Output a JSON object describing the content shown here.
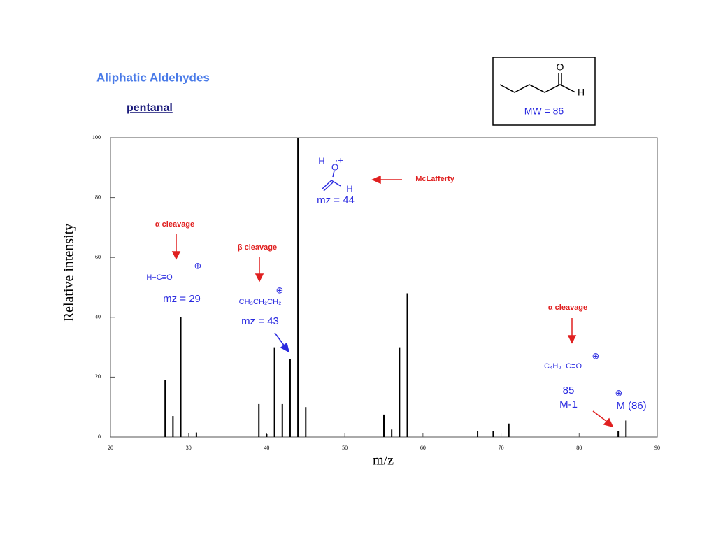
{
  "chart_data": {
    "type": "bar",
    "title": "Aliphatic Aldehydes",
    "subtitle": "pentanal",
    "xlabel": "m/z",
    "ylabel": "Relative intensity",
    "color": "#000000",
    "x": [
      27,
      28,
      29,
      31,
      39,
      40,
      41,
      42,
      43,
      44,
      45,
      55,
      56,
      57,
      58,
      67,
      69,
      71,
      85,
      86
    ],
    "values": [
      19,
      7,
      40,
      1.5,
      11,
      1,
      30,
      11,
      26,
      100,
      10,
      7.5,
      2.5,
      30,
      48,
      2,
      2,
      4.5,
      2,
      5.5
    ],
    "xlim": [
      20,
      90
    ],
    "ylim": [
      0,
      100
    ],
    "xticks": [
      20,
      30,
      40,
      50,
      60,
      70,
      80,
      90
    ],
    "yticks": [
      0,
      20,
      40,
      60,
      80,
      100
    ],
    "structure": {
      "oxygen": "O",
      "hydrogen": "H",
      "mw": "MW = 86"
    },
    "annotations": [
      "α cleavage",
      "H−C≡O",
      "⊕",
      "mz = 29",
      "β cleavage",
      "CH₃CH₂CH₂",
      "⊕",
      "mz = 43",
      "H",
      "O",
      "·+",
      "H",
      "mz = 44",
      "McLafferty",
      "α cleavage",
      "C₄H₉−C≡O",
      "⊕",
      "85",
      "M-1",
      "⊕",
      "M (86)"
    ]
  }
}
